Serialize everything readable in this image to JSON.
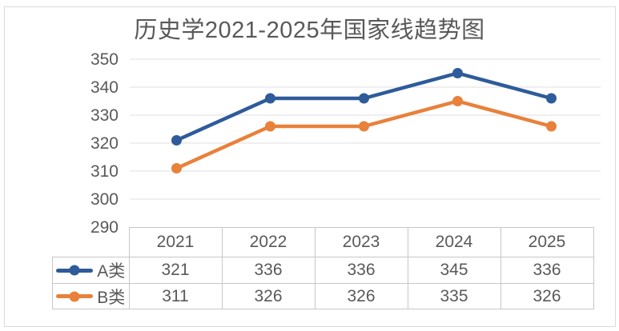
{
  "chart_data": {
    "type": "line",
    "title": "历史学2021-2025年国家线趋势图",
    "categories": [
      "2021",
      "2022",
      "2023",
      "2024",
      "2025"
    ],
    "series": [
      {
        "name": "A类",
        "values": [
          321,
          336,
          336,
          345,
          336
        ],
        "color": "#2e5b9a",
        "marker": "circle"
      },
      {
        "name": "B类",
        "values": [
          311,
          326,
          326,
          335,
          326
        ],
        "color": "#e8813a",
        "marker": "circle"
      }
    ],
    "ylim": [
      290,
      350
    ],
    "yticks": [
      350,
      340,
      330,
      320,
      310,
      300,
      290
    ],
    "grid": "horizontal",
    "legend_position": "data-table-left",
    "data_table_shown": true,
    "xlabel": "",
    "ylabel": ""
  },
  "table": {
    "corner_label": "",
    "column_headers": [
      "2021",
      "2022",
      "2023",
      "2024",
      "2025"
    ],
    "rows": [
      {
        "legend": "A类",
        "values": [
          "321",
          "336",
          "336",
          "345",
          "336"
        ]
      },
      {
        "legend": "B类",
        "values": [
          "311",
          "326",
          "326",
          "335",
          "326"
        ]
      }
    ]
  },
  "colors": {
    "text": "#595959",
    "gridline": "#ebe9e9",
    "table_border": "#c7c7c7",
    "frame_border": "#dadada",
    "background": "#ffffff",
    "series_a": "#2e5b9a",
    "series_b": "#e8813a"
  }
}
